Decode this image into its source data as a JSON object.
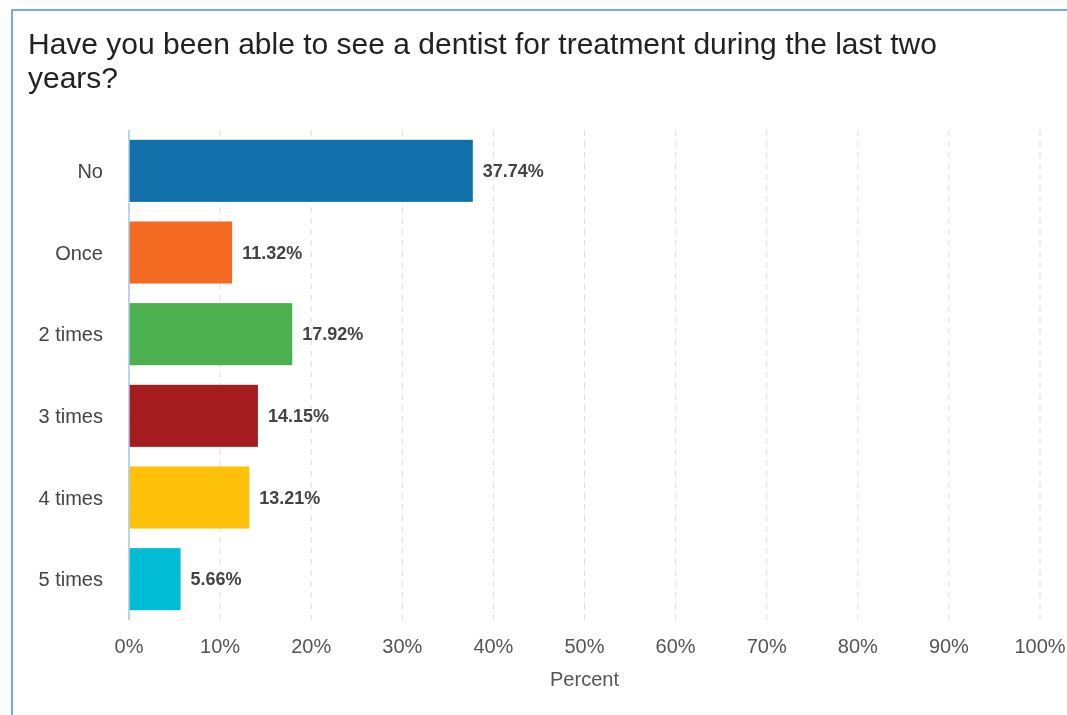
{
  "chart_data": {
    "type": "bar",
    "orientation": "horizontal",
    "title": "Have you been able to see a dentist for treatment during the last two years?",
    "xlabel": "Percent",
    "categories": [
      "No",
      "Once",
      "2 times",
      "3 times",
      "4 times",
      "5 times"
    ],
    "values": [
      37.74,
      11.32,
      17.92,
      14.15,
      13.21,
      5.66
    ],
    "colors": [
      "#1170aa",
      "#f46a23",
      "#4caf50",
      "#a51c1f",
      "#fdc10a",
      "#00bcd4"
    ],
    "value_labels": [
      "37.74%",
      "11.32%",
      "17.92%",
      "14.15%",
      "13.21%",
      "5.66%"
    ],
    "xlim": [
      0,
      100
    ],
    "xticks": [
      {
        "value": 0,
        "label": "0%"
      },
      {
        "value": 10,
        "label": "10%"
      },
      {
        "value": 20,
        "label": "20%"
      },
      {
        "value": 30,
        "label": "30%"
      },
      {
        "value": 40,
        "label": "40%"
      },
      {
        "value": 50,
        "label": "50%"
      },
      {
        "value": 60,
        "label": "60%"
      },
      {
        "value": 70,
        "label": "70%"
      },
      {
        "value": 80,
        "label": "80%"
      },
      {
        "value": 90,
        "label": "90%"
      },
      {
        "value": 100,
        "label": "100%"
      }
    ],
    "grid": "x"
  }
}
